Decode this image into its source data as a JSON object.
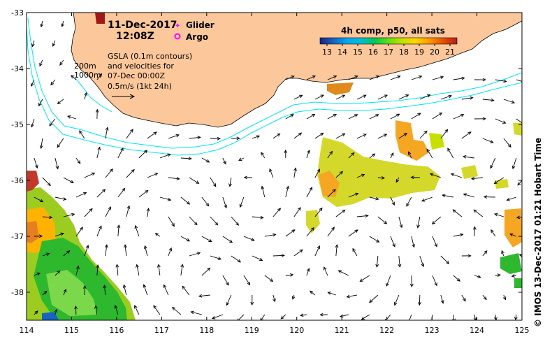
{
  "header": {
    "date": "11-Dec-2017",
    "time": "12:08Z"
  },
  "legend": {
    "glider": "Glider",
    "argo": "Argo",
    "glider_color": "#ff00ff",
    "argo_color": "#ff00ff"
  },
  "info": {
    "line1": "GSLA (0.1m contours)",
    "line2": "and velocities for",
    "line3": "07-Dec 00:00Z",
    "line4": "0.5m/s (1kt 24h)"
  },
  "isobaths": {
    "label_200": "200m",
    "label_1000": "1000m",
    "color": "#00e5ee"
  },
  "colorbar": {
    "title": "4h comp, p50, all sats",
    "ticks": [
      "13",
      "14",
      "15",
      "16",
      "17",
      "18",
      "19",
      "20",
      "21"
    ],
    "colors": [
      "#1a237e",
      "#1565c0",
      "#03a9f4",
      "#00bcd4",
      "#00c853",
      "#64dd17",
      "#c6e000",
      "#ffd600",
      "#ff9800",
      "#e65100",
      "#b71c1c"
    ]
  },
  "axes": {
    "x_ticks": [
      "114",
      "115",
      "116",
      "117",
      "118",
      "119",
      "120",
      "121",
      "122",
      "123",
      "124",
      "125"
    ],
    "y_ticks": [
      "-33",
      "-34",
      "-35",
      "-36",
      "-37",
      "-38"
    ],
    "xlim": [
      114,
      125
    ],
    "ylim": [
      -38.5,
      -33
    ]
  },
  "credit": "©  IMOS 13-Dec-2017 01:21 Hobart Time",
  "colors": {
    "land": "#fcc89b",
    "arrow": "#000000"
  }
}
